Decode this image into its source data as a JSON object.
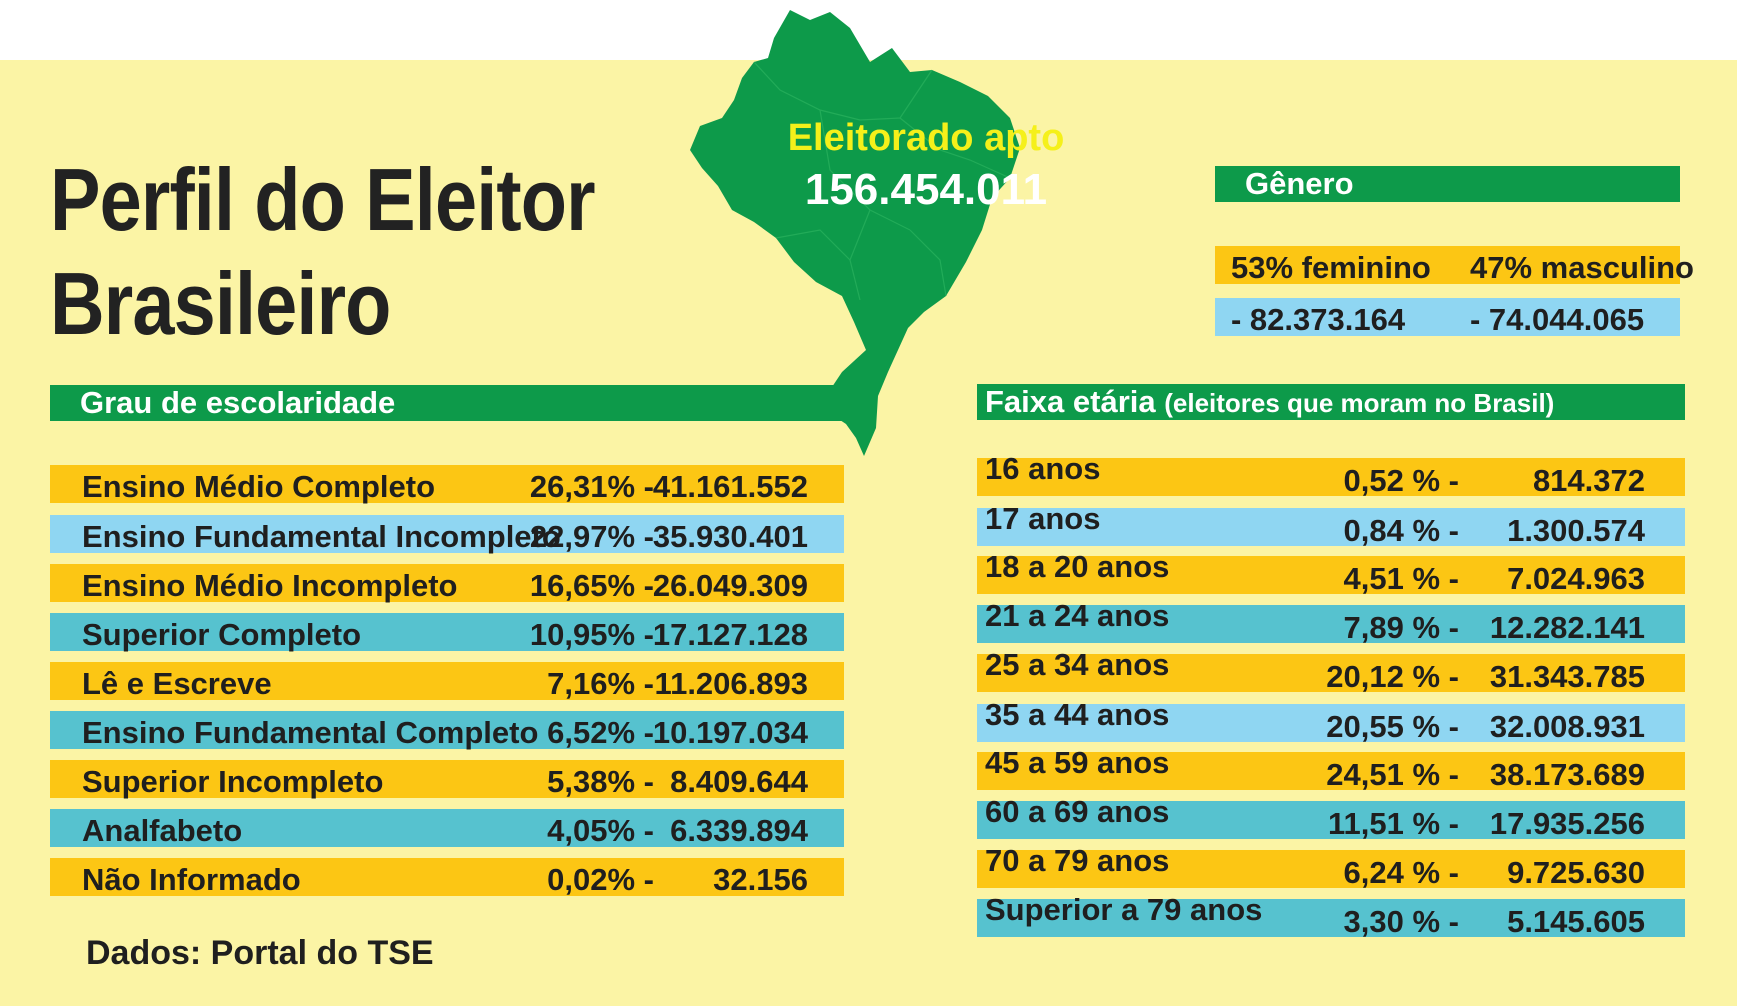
{
  "title": {
    "line1": "Perfil do Eleitor",
    "line2": "Brasileiro"
  },
  "map_label": {
    "label": "Eleitorado apto",
    "total": "156.454.011"
  },
  "gender": {
    "heading": "Gênero",
    "feminino_label": "53% feminino",
    "masculino_label": "47% masculino",
    "feminino_count": "- 82.373.164",
    "masculino_count": "- 74.044.065"
  },
  "education": {
    "heading": "Grau de escolaridade",
    "rows": [
      {
        "label": "Ensino Médio Completo",
        "pct": "26,31% -",
        "count": "41.161.552"
      },
      {
        "label": "Ensino Fundamental Incompleto",
        "pct": "22,97% -",
        "count": "35.930.401"
      },
      {
        "label": "Ensino Médio Incompleto",
        "pct": "16,65% -",
        "count": "26.049.309"
      },
      {
        "label": "Superior Completo",
        "pct": "10,95% -",
        "count": "17.127.128"
      },
      {
        "label": "Lê e Escreve",
        "pct": "7,16% -",
        "count": "11.206.893"
      },
      {
        "label": "Ensino Fundamental Completo",
        "pct": "6,52% -",
        "count": "10.197.034"
      },
      {
        "label": "Superior Incompleto",
        "pct": "5,38% -",
        "count": "8.409.644"
      },
      {
        "label": "Analfabeto",
        "pct": "4,05% -",
        "count": "6.339.894"
      },
      {
        "label": "Não Informado",
        "pct": "0,02% -",
        "count": "32.156"
      }
    ]
  },
  "age": {
    "heading": "Faixa etária",
    "heading_note": "(eleitores que moram no Brasil)",
    "rows": [
      {
        "label": "16 anos",
        "pct": "0,52 % -",
        "count": "814.372"
      },
      {
        "label": "17 anos",
        "pct": "0,84 % -",
        "count": "1.300.574"
      },
      {
        "label": "18 a 20 anos",
        "pct": "4,51 % -",
        "count": "7.024.963"
      },
      {
        "label": "21 a 24 anos",
        "pct": "7,89 % -",
        "count": "12.282.141"
      },
      {
        "label": "25 a 34 anos",
        "pct": "20,12 % -",
        "count": "31.343.785"
      },
      {
        "label": "35 a 44 anos",
        "pct": "20,55 % -",
        "count": "32.008.931"
      },
      {
        "label": "45 a 59 anos",
        "pct": "24,51 % -",
        "count": "38.173.689"
      },
      {
        "label": "60 a 69 anos",
        "pct": "11,51 % -",
        "count": "17.935.256"
      },
      {
        "label": "70 a 79 anos",
        "pct": "6,24 % -",
        "count": "9.725.630"
      },
      {
        "label": "Superior a 79 anos",
        "pct": "3,30 % -",
        "count": "5.145.605"
      }
    ]
  },
  "source": "Dados: Portal do TSE",
  "colors": {
    "background": "#fbf4a5",
    "green": "#0d9a4a",
    "yellow": "#fcc614",
    "light_blue": "#8fd6f2",
    "teal": "#56c2cf",
    "map_label_yellow": "#f5f01a"
  },
  "chart_data": [
    {
      "type": "table",
      "title": "Grau de escolaridade",
      "columns": [
        "category",
        "percent",
        "voters"
      ],
      "categories": [
        "Ensino Médio Completo",
        "Ensino Fundamental Incompleto",
        "Ensino Médio Incompleto",
        "Superior Completo",
        "Lê e Escreve",
        "Ensino Fundamental Completo",
        "Superior Incompleto",
        "Analfabeto",
        "Não Informado"
      ],
      "percent": [
        26.31,
        22.97,
        16.65,
        10.95,
        7.16,
        6.52,
        5.38,
        4.05,
        0.02
      ],
      "voters": [
        41161552,
        35930401,
        26049309,
        17127128,
        11206893,
        10197034,
        8409644,
        6339894,
        32156
      ]
    },
    {
      "type": "table",
      "title": "Faixa etária",
      "columns": [
        "age_group",
        "percent",
        "voters"
      ],
      "categories": [
        "16 anos",
        "17 anos",
        "18 a 20 anos",
        "21 a 24 anos",
        "25 a 34 anos",
        "35 a 44 anos",
        "45 a 59 anos",
        "60 a 69 anos",
        "70 a 79 anos",
        "Superior a 79 anos"
      ],
      "percent": [
        0.52,
        0.84,
        4.51,
        7.89,
        20.12,
        20.55,
        24.51,
        11.51,
        6.24,
        3.3
      ],
      "voters": [
        814372,
        1300574,
        7024963,
        12282141,
        31343785,
        32008931,
        38173689,
        17935256,
        9725630,
        5145605
      ]
    },
    {
      "type": "table",
      "title": "Gênero",
      "categories": [
        "feminino",
        "masculino"
      ],
      "percent": [
        53,
        47
      ],
      "voters": [
        82373164,
        74044065
      ]
    }
  ]
}
